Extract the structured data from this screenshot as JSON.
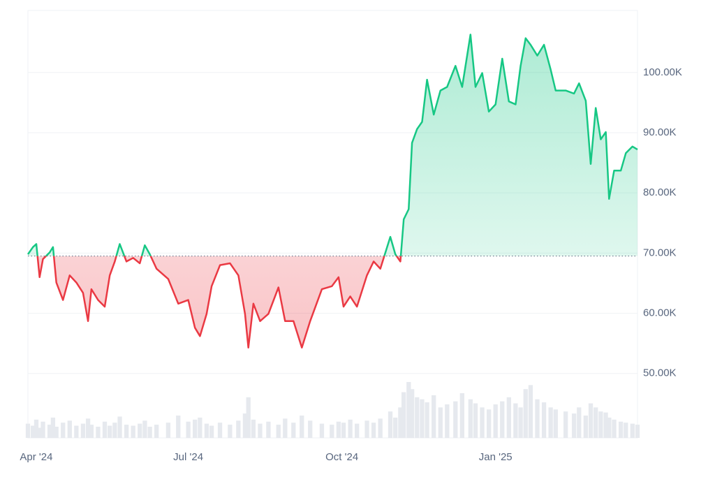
{
  "chart_data": {
    "type": "line",
    "x": [
      0,
      3,
      5,
      7,
      9,
      13,
      15,
      17,
      21,
      25,
      29,
      33,
      36,
      38,
      42,
      46,
      49,
      52,
      55,
      59,
      63,
      67,
      70,
      73,
      77,
      84,
      90,
      96,
      100,
      103,
      107,
      110,
      115,
      121,
      126,
      130,
      132,
      135,
      139,
      144,
      150,
      154,
      159,
      164,
      169,
      176,
      182,
      186,
      189,
      193,
      197,
      203,
      207,
      211,
      217,
      220,
      223,
      225,
      228,
      230,
      233,
      236,
      239,
      243,
      247,
      251,
      256,
      260,
      265,
      268,
      272,
      276,
      280,
      284,
      288,
      292,
      295,
      298,
      301,
      305,
      309,
      313,
      316,
      322,
      327,
      330,
      334,
      337,
      340,
      343,
      346,
      348,
      351,
      355,
      358,
      362,
      365
    ],
    "series": [
      {
        "values": [
          69800,
          71000,
          71500,
          66000,
          69000,
          70100,
          71000,
          65100,
          62200,
          66300,
          65100,
          63400,
          58700,
          64000,
          62200,
          61100,
          66300,
          68600,
          71500,
          68600,
          69200,
          68300,
          71300,
          69800,
          67400,
          65700,
          61600,
          62200,
          57600,
          56200,
          59900,
          64500,
          68000,
          68300,
          66300,
          59900,
          54300,
          61600,
          58700,
          59900,
          64300,
          58700,
          58700,
          54300,
          58700,
          64000,
          64500,
          66000,
          61100,
          62800,
          61100,
          66300,
          68600,
          67400,
          72700,
          69800,
          68600,
          75600,
          77300,
          88300,
          90600,
          91800,
          98800,
          93000,
          97000,
          97600,
          101100,
          97600,
          106300,
          97600,
          99900,
          93500,
          94700,
          102300,
          95200,
          94700,
          101100,
          105700,
          104600,
          102800,
          104600,
          100500,
          97000,
          97000,
          96500,
          98200,
          95300,
          84800,
          94100,
          88900,
          90100,
          79000,
          83700,
          83700,
          86600,
          87700,
          87200
        ]
      }
    ],
    "volume": [
      14,
      12,
      18,
      10,
      16,
      13,
      20,
      11,
      15,
      17,
      12,
      14,
      19,
      13,
      11,
      16,
      12,
      15,
      21,
      13,
      12,
      14,
      17,
      11,
      13,
      15,
      22,
      16,
      18,
      20,
      14,
      12,
      15,
      13,
      17,
      24,
      40,
      18,
      14,
      16,
      13,
      19,
      15,
      22,
      17,
      14,
      13,
      16,
      15,
      18,
      14,
      17,
      15,
      19,
      26,
      20,
      30,
      45,
      55,
      48,
      40,
      38,
      35,
      42,
      30,
      33,
      36,
      44,
      38,
      34,
      30,
      28,
      33,
      36,
      40,
      34,
      30,
      48,
      52,
      38,
      35,
      30,
      28,
      26,
      24,
      30,
      22,
      34,
      30,
      26,
      25,
      20,
      18,
      16,
      15,
      14,
      13
    ],
    "up_color": "#16c784",
    "down_color": "#ea3943",
    "baseline": 69500,
    "xlim": [
      0,
      365
    ],
    "xticks": [
      {
        "value": 5,
        "label": "Apr '24"
      },
      {
        "value": 96,
        "label": "Jul '24"
      },
      {
        "value": 188,
        "label": "Oct '24"
      },
      {
        "value": 280,
        "label": "Jan '25"
      }
    ],
    "ylim": [
      39300,
      110300
    ],
    "yticks": [
      {
        "value": 50000,
        "label": "50.00K"
      },
      {
        "value": 60000,
        "label": "60.00K"
      },
      {
        "value": 70000,
        "label": "70.00K"
      },
      {
        "value": 80000,
        "label": "80.00K"
      },
      {
        "value": 90000,
        "label": "90.00K"
      },
      {
        "value": 100000,
        "label": "100.00K"
      }
    ],
    "grid": true
  }
}
